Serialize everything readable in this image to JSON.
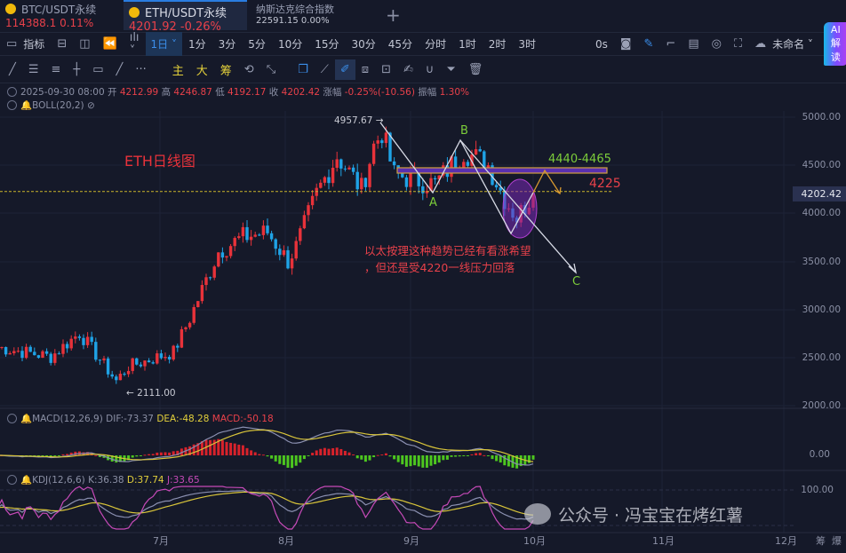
{
  "tabs": [
    {
      "name": "BTC/USDT永续",
      "price": "114388.1",
      "change": "0.11%"
    },
    {
      "name": "ETH/USDT永续",
      "price": "4201.92",
      "change": "-0.26%"
    },
    {
      "name": "纳斯达克综合指数",
      "price": "22591.15",
      "change": "0.00%"
    }
  ],
  "toolbar": {
    "indicators": "指标",
    "interval": "1日",
    "intervals": [
      "1分",
      "3分",
      "5分",
      "10分",
      "15分",
      "30分",
      "45分",
      "分时",
      "1时",
      "2时",
      "3时"
    ],
    "countdown": "0s",
    "layout_name": "未命名",
    "ai": "AI解读"
  },
  "drawing_tools": {
    "main": "主",
    "big": "大",
    "chips": "筹"
  },
  "ohlc": {
    "date": "2025-09-30 08:00",
    "open_label": "开",
    "open": "4212.99",
    "high_label": "高",
    "high": "4246.87",
    "low_label": "低",
    "low": "4192.17",
    "close_label": "收",
    "close": "4202.42",
    "chg_label": "涨幅",
    "chg": "-0.25%(-10.56)",
    "amp_label": "振幅",
    "amp": "1.30%"
  },
  "boll": "BOLL(20,2)",
  "macd": {
    "label": "MACD(12,26,9)",
    "dif": "DIF:-73.37",
    "dea": "DEA:-48.28",
    "macd": "MACD:-50.18"
  },
  "kdj": {
    "label": "KDJ(12,6,6)",
    "k": "K:36.38",
    "d": "D:37.74",
    "j": "J:33.65"
  },
  "price_axis": [
    "5000.00",
    "4500.00",
    "4000.00",
    "3500.00",
    "3000.00",
    "2500.00",
    "2000.00"
  ],
  "current_price": "4202.42",
  "macd_axis": "0.00",
  "kdj_axis": "100.00",
  "months": [
    "7月",
    "8月",
    "9月",
    "10月",
    "11月",
    "12月"
  ],
  "bottom_right": [
    "筹",
    "爆"
  ],
  "annotations": {
    "title": "ETH日线图",
    "high": "4957.67",
    "low": "2111.00",
    "A": "A",
    "B": "B",
    "C": "C",
    "zone": "4440-4465",
    "level": "4225",
    "note1": "以太按理这种趋势已经有看涨希望",
    "note2": "，但还是受4220一线压力回落"
  },
  "watermark": "公众号 · 冯宝宝在烤红薯",
  "colors": {
    "up": "#e8323a",
    "down": "#1fa3e6",
    "bg": "#151929",
    "accent": "#2a7de1"
  },
  "chart_data": {
    "type": "candlestick",
    "symbol": "ETH/USDT",
    "ylim": [
      2000,
      5000
    ],
    "anchors": [
      [
        "2025-05-22",
        2600
      ],
      [
        "2025-06-04",
        2500
      ],
      [
        "2025-06-11",
        2750
      ],
      [
        "2025-06-20",
        2250
      ],
      [
        "2025-06-23",
        2400
      ],
      [
        "2025-07-04",
        2550
      ],
      [
        "2025-07-08",
        2900
      ],
      [
        "2025-07-15",
        3600
      ],
      [
        "2025-07-21",
        3750
      ],
      [
        "2025-07-27",
        3800
      ],
      [
        "2025-08-01",
        3500
      ],
      [
        "2025-08-03",
        3650
      ],
      [
        "2025-08-08",
        4200
      ],
      [
        "2025-08-13",
        4600
      ],
      [
        "2025-08-19",
        4250
      ],
      [
        "2025-08-22",
        4700
      ],
      [
        "2025-08-24",
        4850
      ],
      [
        "2025-08-27",
        4400
      ],
      [
        "2025-09-06",
        4300
      ],
      [
        "2025-09-13",
        4650
      ],
      [
        "2025-09-19",
        4500
      ],
      [
        "2025-09-23",
        4150
      ],
      [
        "2025-09-26",
        3950
      ],
      [
        "2025-09-30",
        4202.42
      ]
    ]
  }
}
